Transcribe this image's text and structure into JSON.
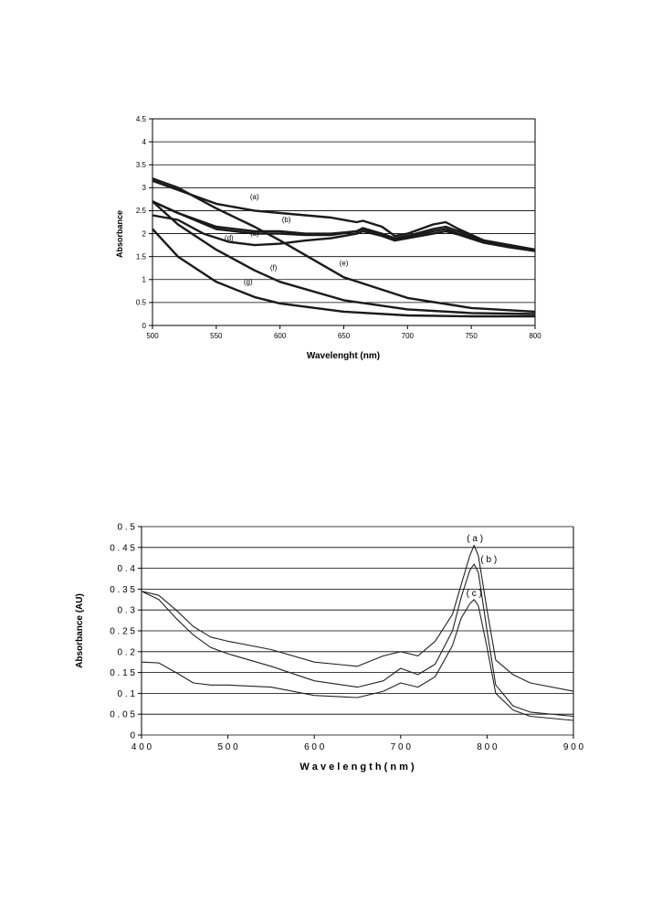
{
  "chart_data": [
    {
      "type": "line",
      "xlabel": "Wavelenght (nm)",
      "ylabel": "Absorbance",
      "xlim": [
        500,
        800
      ],
      "ylim": [
        0,
        4.5
      ],
      "xticks": [
        "500",
        "550",
        "600",
        "650",
        "700",
        "750",
        "800"
      ],
      "yticks": [
        "0",
        "0.5",
        "1",
        "1.5",
        "2",
        "2.5",
        "3",
        "3.5",
        "4",
        "4.5"
      ],
      "grid": true,
      "series": [
        {
          "name": "(a)",
          "x": [
            500,
            520,
            550,
            580,
            600,
            620,
            640,
            660,
            665,
            680,
            690,
            700,
            720,
            730,
            740,
            760,
            780,
            800
          ],
          "y": [
            3.15,
            2.95,
            2.65,
            2.5,
            2.45,
            2.4,
            2.35,
            2.25,
            2.28,
            2.15,
            1.95,
            2.0,
            2.2,
            2.25,
            2.1,
            1.85,
            1.75,
            1.65
          ]
        },
        {
          "name": "(b)",
          "x": [
            500,
            520,
            550,
            580,
            600,
            620,
            640,
            660,
            665,
            680,
            690,
            700,
            720,
            730,
            740,
            760,
            780,
            800
          ],
          "y": [
            2.7,
            2.45,
            2.15,
            2.05,
            2.05,
            2.0,
            2.0,
            2.05,
            2.12,
            2.0,
            1.9,
            1.95,
            2.1,
            2.15,
            2.05,
            1.85,
            1.75,
            1.65
          ]
        },
        {
          "name": "(c)",
          "x": [
            500,
            520,
            550,
            580,
            600,
            620,
            640,
            660,
            665,
            680,
            690,
            700,
            720,
            730,
            740,
            760,
            780,
            800
          ],
          "y": [
            2.7,
            2.45,
            2.1,
            2.0,
            2.0,
            1.97,
            1.97,
            2.05,
            2.1,
            1.98,
            1.88,
            1.92,
            2.05,
            2.1,
            2.0,
            1.82,
            1.72,
            1.62
          ]
        },
        {
          "name": "(d)",
          "x": [
            500,
            520,
            540,
            560,
            580,
            600,
            620,
            640,
            660,
            665,
            680,
            690,
            700,
            720,
            730,
            740,
            760,
            780,
            800
          ],
          "y": [
            2.4,
            2.3,
            2.0,
            1.82,
            1.75,
            1.78,
            1.85,
            1.9,
            2.0,
            2.05,
            1.95,
            1.85,
            1.9,
            2.0,
            2.05,
            1.98,
            1.8,
            1.7,
            1.62
          ]
        },
        {
          "name": "(e)",
          "x": [
            500,
            520,
            550,
            580,
            600,
            650,
            700,
            750,
            800
          ],
          "y": [
            3.2,
            3.0,
            2.55,
            2.15,
            1.85,
            1.05,
            0.6,
            0.38,
            0.3
          ]
        },
        {
          "name": "(f)",
          "x": [
            500,
            520,
            550,
            580,
            600,
            650,
            700,
            750,
            800
          ],
          "y": [
            2.7,
            2.2,
            1.65,
            1.2,
            0.95,
            0.55,
            0.35,
            0.27,
            0.25
          ]
        },
        {
          "name": "(g)",
          "x": [
            500,
            520,
            550,
            580,
            600,
            650,
            700,
            750,
            800
          ],
          "y": [
            2.1,
            1.5,
            0.95,
            0.62,
            0.48,
            0.3,
            0.22,
            0.2,
            0.2
          ]
        }
      ]
    },
    {
      "type": "line",
      "xlabel": "W a v e l e n g t h  ( n m )",
      "ylabel": "Absorbance (AU)",
      "xlim": [
        400,
        900
      ],
      "ylim": [
        0,
        0.5
      ],
      "xticks": [
        "4 0 0",
        "5 0 0",
        "6 0 0",
        "7 0 0",
        "8 0 0",
        "9 0 0"
      ],
      "yticks": [
        "0",
        "0 . 0 5",
        "0 . 1",
        "0 . 1 5",
        "0 . 2",
        "0 . 2 5",
        "0 . 3",
        "0 . 3 5",
        "0 . 4",
        "0 . 4 5",
        "0 . 5"
      ],
      "grid": true,
      "series": [
        {
          "name": "( a )",
          "x": [
            400,
            420,
            440,
            460,
            480,
            500,
            550,
            600,
            650,
            680,
            700,
            720,
            740,
            760,
            770,
            780,
            785,
            790,
            800,
            810,
            830,
            850,
            900
          ],
          "y": [
            0.345,
            0.335,
            0.3,
            0.26,
            0.235,
            0.225,
            0.205,
            0.175,
            0.165,
            0.19,
            0.2,
            0.19,
            0.225,
            0.29,
            0.36,
            0.43,
            0.455,
            0.43,
            0.3,
            0.18,
            0.145,
            0.125,
            0.105
          ]
        },
        {
          "name": "( b )",
          "x": [
            400,
            420,
            440,
            460,
            480,
            500,
            550,
            600,
            650,
            680,
            700,
            720,
            740,
            760,
            770,
            780,
            785,
            790,
            800,
            810,
            830,
            850,
            900
          ],
          "y": [
            0.345,
            0.325,
            0.28,
            0.24,
            0.21,
            0.195,
            0.165,
            0.13,
            0.115,
            0.13,
            0.16,
            0.145,
            0.17,
            0.25,
            0.33,
            0.395,
            0.41,
            0.39,
            0.25,
            0.12,
            0.07,
            0.055,
            0.045
          ]
        },
        {
          "name": "( c )",
          "x": [
            400,
            420,
            440,
            460,
            480,
            500,
            550,
            600,
            650,
            680,
            700,
            720,
            740,
            760,
            770,
            780,
            785,
            790,
            800,
            810,
            830,
            850,
            900
          ],
          "y": [
            0.175,
            0.173,
            0.15,
            0.125,
            0.12,
            0.12,
            0.115,
            0.095,
            0.09,
            0.105,
            0.125,
            0.115,
            0.14,
            0.215,
            0.28,
            0.315,
            0.325,
            0.31,
            0.21,
            0.1,
            0.06,
            0.045,
            0.035
          ]
        }
      ]
    }
  ]
}
